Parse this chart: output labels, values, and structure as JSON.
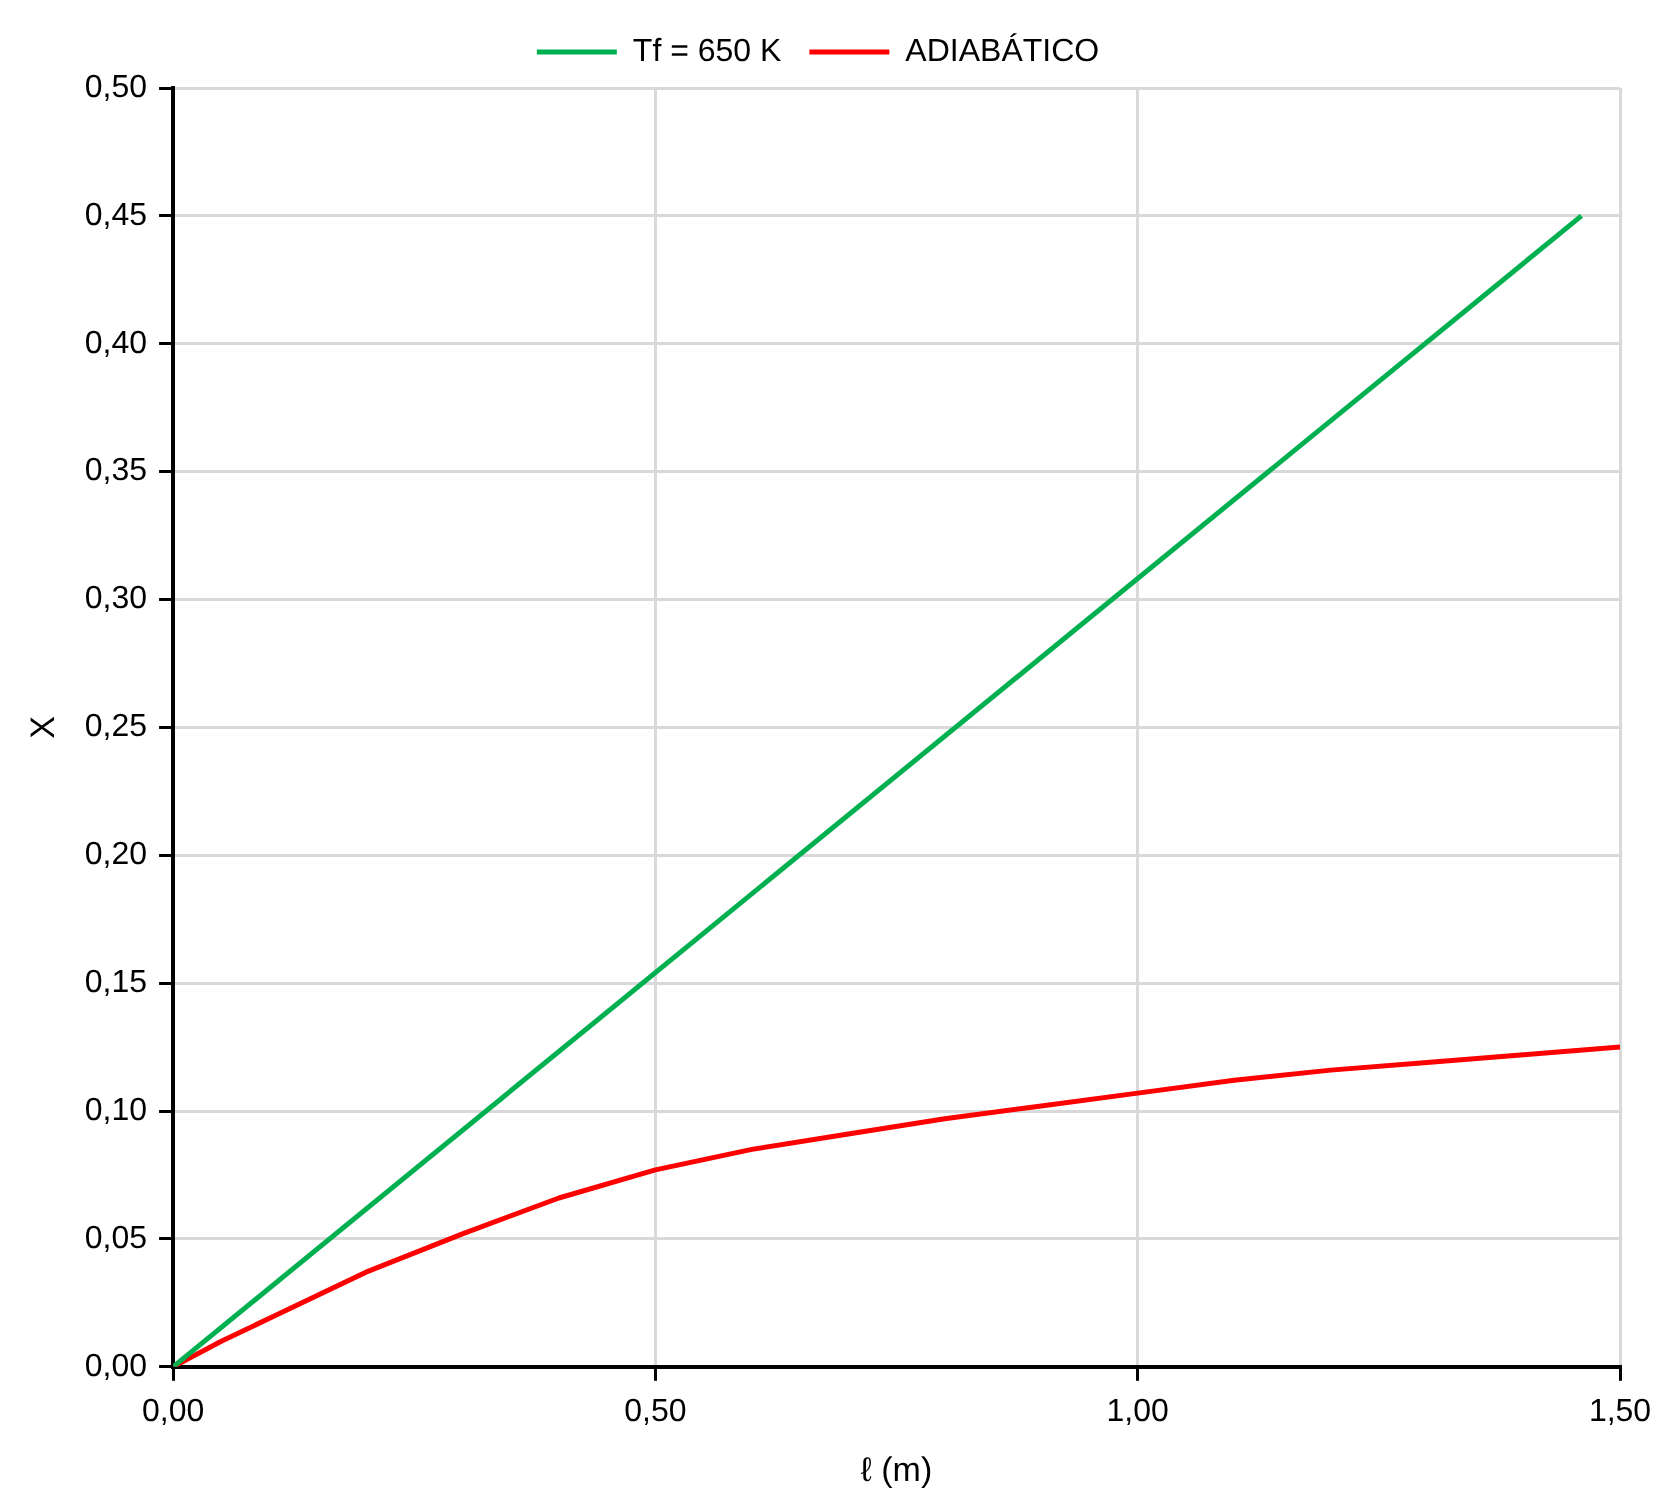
{
  "chart_data": {
    "type": "line",
    "xlabel": "ℓ (m)",
    "ylabel": "X",
    "legend": "top",
    "grid": true,
    "marker": "none",
    "line_style": "solid",
    "xlim": [
      0,
      1.5
    ],
    "ylim": [
      0,
      0.5
    ],
    "xticks": [
      {
        "value": 0,
        "label": "0,00"
      },
      {
        "value": 0.5,
        "label": "0,50"
      },
      {
        "value": 1,
        "label": "1,00"
      },
      {
        "value": 1.5,
        "label": "1,50"
      }
    ],
    "yticks": [
      {
        "value": 0,
        "label": "0,00"
      },
      {
        "value": 0.05,
        "label": "0,05"
      },
      {
        "value": 0.1,
        "label": "0,10"
      },
      {
        "value": 0.15,
        "label": "0,15"
      },
      {
        "value": 0.2,
        "label": "0,20"
      },
      {
        "value": 0.25,
        "label": "0,25"
      },
      {
        "value": 0.3,
        "label": "0,30"
      },
      {
        "value": 0.35,
        "label": "0,35"
      },
      {
        "value": 0.4,
        "label": "0,40"
      },
      {
        "value": 0.45,
        "label": "0,45"
      },
      {
        "value": 0.5,
        "label": "0,50"
      }
    ],
    "series": [
      {
        "name": "Tf = 650 K",
        "color": "#00b050",
        "x": [
          0,
          1.46
        ],
        "values": [
          0,
          0.45
        ]
      },
      {
        "name": "ADIABÁTICO",
        "color": "#ff0000",
        "x": [
          0,
          0.05,
          0.1,
          0.2,
          0.3,
          0.4,
          0.5,
          0.6,
          0.7,
          0.8,
          0.9,
          1.0,
          1.1,
          1.2,
          1.3,
          1.4,
          1.5
        ],
        "values": [
          0,
          0.01,
          0.019,
          0.037,
          0.052,
          0.066,
          0.077,
          0.085,
          0.091,
          0.097,
          0.102,
          0.107,
          0.112,
          0.116,
          0.119,
          0.122,
          0.125
        ]
      }
    ]
  }
}
